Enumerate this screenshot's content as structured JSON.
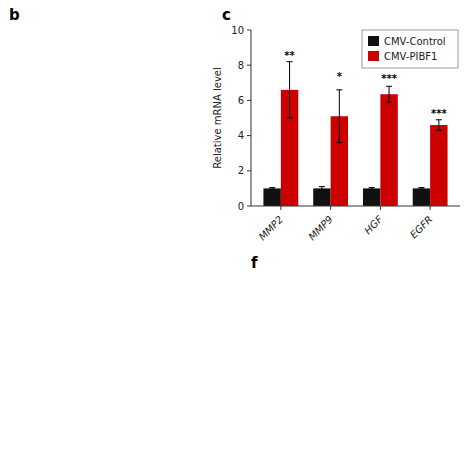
{
  "chart_data": {
    "type": "bar",
    "categories": [
      "MMP2",
      "MMP9",
      "HGF",
      "EGFR"
    ],
    "series": [
      {
        "name": "CMV-Control",
        "color": "#111111",
        "values": [
          1.0,
          1.0,
          1.0,
          1.0
        ],
        "errors": [
          0.05,
          0.1,
          0.05,
          0.05
        ]
      },
      {
        "name": "CMV-PIBF1",
        "color": "#cc0000",
        "values": [
          6.6,
          5.1,
          6.35,
          4.6
        ],
        "errors": [
          1.6,
          1.5,
          0.45,
          0.3
        ]
      }
    ],
    "ylabel": "Relative mRNA level",
    "ylim": [
      0,
      10
    ],
    "yticks": [
      0,
      2,
      4,
      6,
      8,
      10
    ],
    "grid": false,
    "legend": "upper right",
    "annotations": [
      {
        "text": "**",
        "category": "MMP2",
        "series": "CMV-PIBF1",
        "y": 8.3
      },
      {
        "text": "*",
        "category": "MMP9",
        "series": "CMV-PIBF1",
        "y": 7.1
      },
      {
        "text": "***",
        "category": "HGF",
        "series": "CMV-PIBF1",
        "y": 7.0
      },
      {
        "text": "***",
        "category": "EGFR",
        "series": "CMV-PIBF1",
        "y": 5.0
      }
    ],
    "panel_labels": [
      "b",
      "c",
      "f"
    ]
  }
}
